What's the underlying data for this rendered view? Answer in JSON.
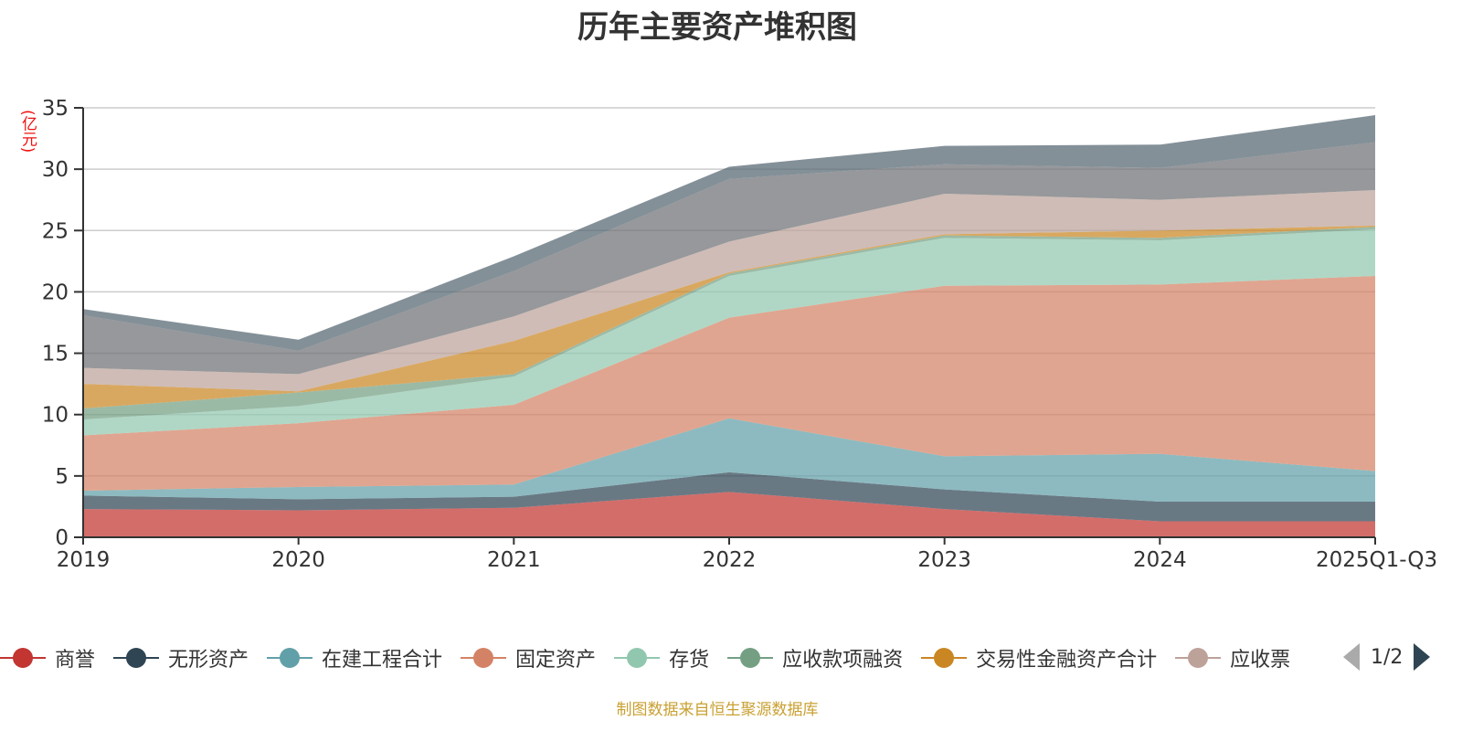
{
  "title": "历年主要资产堆积图",
  "unit_label": "(亿元)",
  "source": "制图数据来自恒生聚源数据库",
  "pager": {
    "current": "1/2"
  },
  "chart_data": {
    "type": "area",
    "stacked": true,
    "title": "历年主要资产堆积图",
    "xlabel": "",
    "ylabel": "(亿元)",
    "ylim": [
      0,
      35
    ],
    "yticks": [
      0,
      5,
      10,
      15,
      20,
      25,
      30,
      35
    ],
    "grid": true,
    "legend_position": "bottom",
    "categories": [
      "2019",
      "2020",
      "2021",
      "2022",
      "2023",
      "2024",
      "2025Q1-Q3"
    ],
    "series": [
      {
        "name": "商誉",
        "color": "#c23531",
        "values": [
          2.3,
          2.2,
          2.4,
          3.7,
          2.3,
          1.3,
          1.3
        ]
      },
      {
        "name": "无形资产",
        "color": "#2f4554",
        "values": [
          1.1,
          0.9,
          0.9,
          1.6,
          1.6,
          1.6,
          1.6
        ]
      },
      {
        "name": "在建工程合计",
        "color": "#61a0a8",
        "values": [
          0.4,
          1.0,
          1.0,
          4.4,
          2.7,
          3.9,
          2.5
        ]
      },
      {
        "name": "固定资产",
        "color": "#d48265",
        "values": [
          4.5,
          5.2,
          6.5,
          8.2,
          13.9,
          13.8,
          15.9
        ]
      },
      {
        "name": "存货",
        "color": "#91c7ae",
        "values": [
          1.3,
          1.4,
          2.3,
          3.4,
          3.9,
          3.6,
          3.8
        ]
      },
      {
        "name": "应收款项融资",
        "color": "#749f83",
        "values": [
          0.9,
          1.1,
          0.2,
          0.2,
          0.2,
          0.2,
          0.2
        ]
      },
      {
        "name": "交易性金融资产合计",
        "color": "#ca8622",
        "values": [
          2.0,
          0.1,
          2.7,
          0.1,
          0.1,
          0.6,
          0.1
        ]
      },
      {
        "name": "应收票据",
        "color": "#bda29a",
        "values": [
          1.3,
          1.4,
          2.0,
          2.5,
          3.3,
          2.5,
          2.9
        ]
      },
      {
        "name": "",
        "color": "#6e7074",
        "values": [
          4.3,
          1.9,
          3.7,
          5.1,
          2.4,
          2.6,
          3.9
        ]
      },
      {
        "name": "",
        "color": "#546570",
        "values": [
          0.5,
          0.9,
          1.2,
          1.0,
          1.5,
          1.9,
          2.2
        ]
      }
    ],
    "legend_visible": [
      "商誉",
      "无形资产",
      "在建工程合计",
      "固定资产",
      "存货",
      "应收款项融资",
      "交易性金融资产合计",
      "应收票"
    ]
  }
}
